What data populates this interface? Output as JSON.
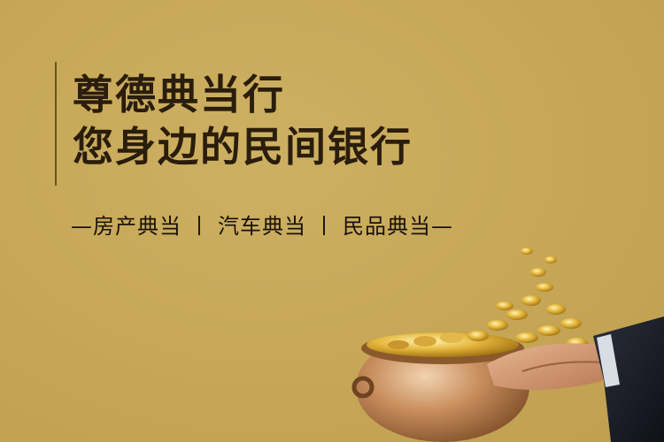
{
  "headline": {
    "line1": "尊德典当行",
    "line2": "您身边的民间银行"
  },
  "services": {
    "prefix": "—",
    "item1": "房产典当",
    "sep1": "丨",
    "item2": "汽车典当",
    "sep2": "丨",
    "item3": "民品典当",
    "suffix": "—"
  },
  "colors": {
    "background": "#c8ab5b",
    "headline": "#2a1d0c",
    "text": "#1a1208"
  }
}
